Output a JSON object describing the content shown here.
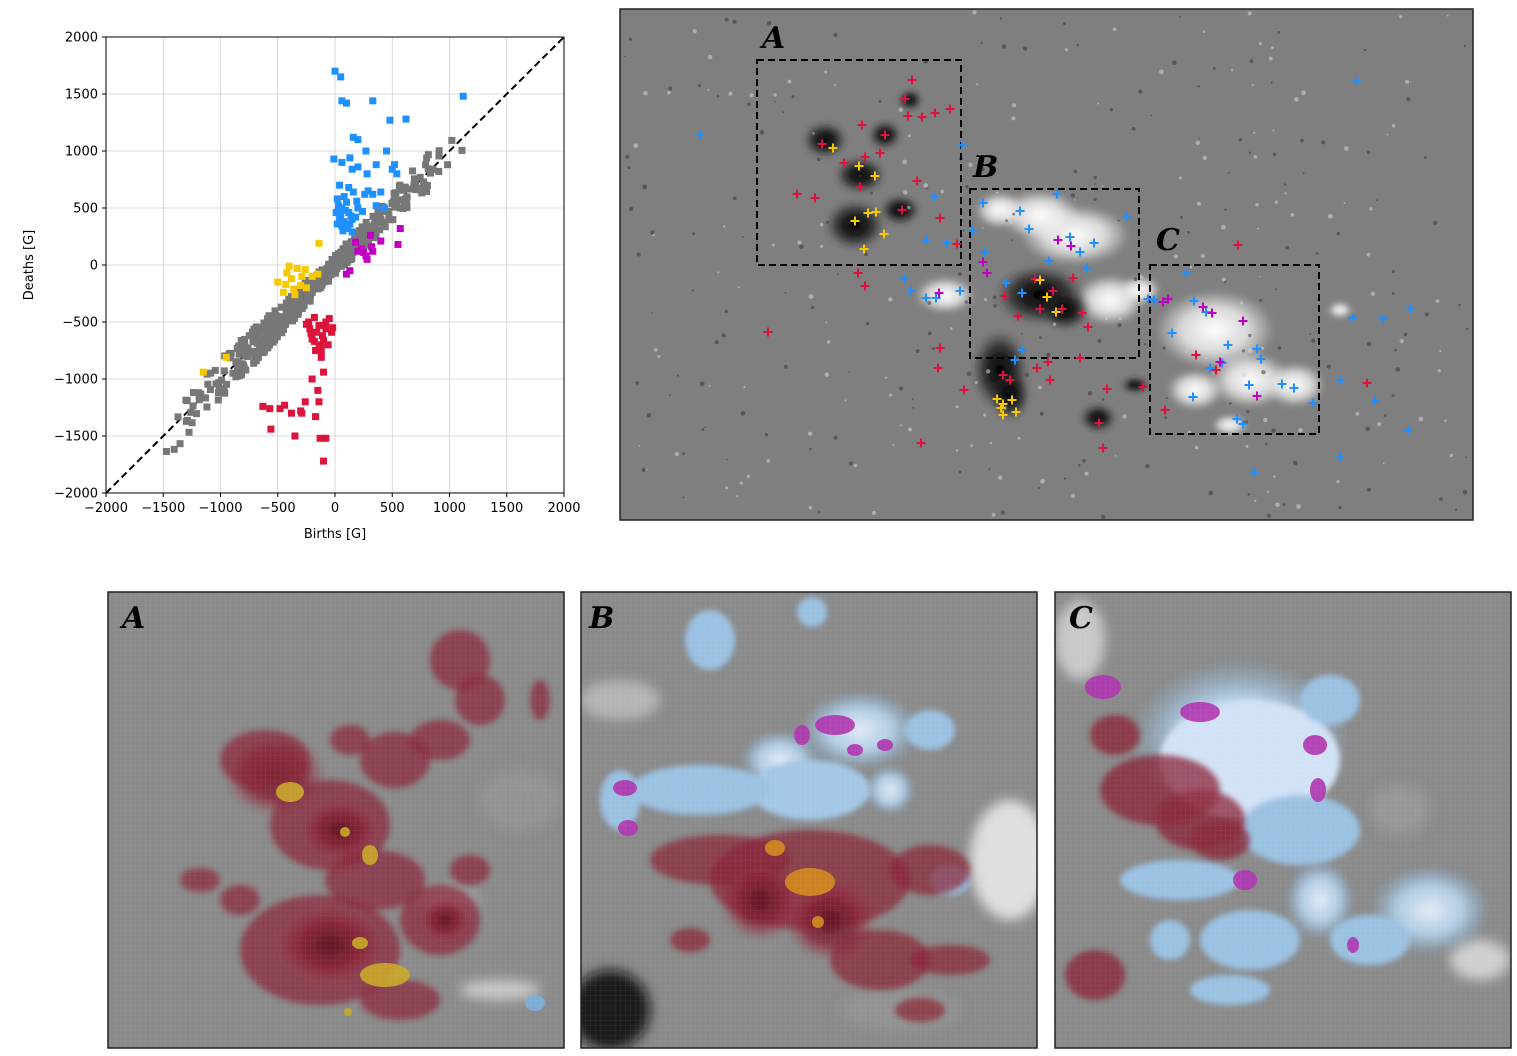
{
  "panel_labels": [
    "A",
    "B",
    "C"
  ],
  "colors": {
    "gray": "#777777",
    "blue": "#1e90ff",
    "red": "#dc143c",
    "magenta": "#c000c0",
    "yellow": "#f5c800"
  },
  "chart_data": {
    "type": "scatter",
    "xlabel": "Births [G]",
    "ylabel": "Deaths [G]",
    "xlim": [
      -2000,
      2000
    ],
    "ylim": [
      -2000,
      2000
    ],
    "xticks": [
      "−2000",
      "−1500",
      "−1000",
      "−500",
      "0",
      "500",
      "1000",
      "1500",
      "2000"
    ],
    "yticks": [
      "−2000",
      "−1500",
      "−1000",
      "−500",
      "0",
      "500",
      "1000",
      "1500",
      "2000"
    ],
    "grid": true,
    "reference_line": "y = x",
    "series": [
      {
        "color": "blue",
        "points": [
          [
            0,
            1700
          ],
          [
            50,
            1650
          ],
          [
            60,
            1440
          ],
          [
            100,
            1420
          ],
          [
            330,
            1440
          ],
          [
            480,
            1270
          ],
          [
            620,
            1280
          ],
          [
            1120,
            1480
          ],
          [
            160,
            1120
          ],
          [
            200,
            1100
          ],
          [
            130,
            940
          ],
          [
            270,
            1000
          ],
          [
            450,
            1000
          ],
          [
            360,
            880
          ],
          [
            -10,
            930
          ],
          [
            60,
            900
          ],
          [
            150,
            840
          ],
          [
            200,
            860
          ],
          [
            280,
            800
          ],
          [
            500,
            840
          ],
          [
            520,
            880
          ],
          [
            540,
            800
          ],
          [
            40,
            700
          ],
          [
            120,
            680
          ],
          [
            20,
            580
          ],
          [
            80,
            600
          ],
          [
            190,
            560
          ],
          [
            260,
            620
          ],
          [
            290,
            650
          ],
          [
            330,
            620
          ],
          [
            400,
            640
          ],
          [
            160,
            640
          ],
          [
            360,
            520
          ],
          [
            430,
            500
          ],
          [
            30,
            520
          ],
          [
            60,
            500
          ],
          [
            90,
            480
          ],
          [
            10,
            460
          ],
          [
            50,
            440
          ],
          [
            120,
            460
          ],
          [
            140,
            430
          ],
          [
            40,
            400
          ],
          [
            80,
            380
          ],
          [
            130,
            360
          ],
          [
            20,
            360
          ],
          [
            110,
            320
          ],
          [
            70,
            300
          ],
          [
            150,
            290
          ],
          [
            180,
            420
          ],
          [
            240,
            470
          ],
          [
            30,
            470
          ],
          [
            100,
            550
          ],
          [
            150,
            400
          ],
          [
            60,
            340
          ],
          [
            200,
            500
          ]
        ]
      },
      {
        "color": "red",
        "points": [
          [
            -100,
            -1720
          ],
          [
            -80,
            -1520
          ],
          [
            -130,
            -1520
          ],
          [
            -350,
            -1500
          ],
          [
            -480,
            -1260
          ],
          [
            -440,
            -1230
          ],
          [
            -380,
            -1300
          ],
          [
            -290,
            -1300
          ],
          [
            -560,
            -1440
          ],
          [
            -630,
            -1240
          ],
          [
            -170,
            -1330
          ],
          [
            -140,
            -1200
          ],
          [
            -150,
            -1100
          ],
          [
            -200,
            -1000
          ],
          [
            -100,
            -940
          ],
          [
            -260,
            -1200
          ],
          [
            -570,
            -1260
          ],
          [
            -300,
            -1280
          ],
          [
            -120,
            -810
          ],
          [
            -170,
            -750
          ],
          [
            -120,
            -700
          ],
          [
            -110,
            -620
          ],
          [
            -80,
            -560
          ],
          [
            -220,
            -560
          ],
          [
            -160,
            -590
          ],
          [
            -140,
            -530
          ],
          [
            -200,
            -650
          ],
          [
            -100,
            -660
          ],
          [
            -80,
            -500
          ],
          [
            -50,
            -470
          ],
          [
            -30,
            -590
          ],
          [
            -230,
            -500
          ],
          [
            -180,
            -460
          ],
          [
            -140,
            -720
          ],
          [
            -60,
            -700
          ],
          [
            -20,
            -550
          ],
          [
            -210,
            -600
          ],
          [
            -250,
            -520
          ],
          [
            -120,
            -760
          ],
          [
            -180,
            -670
          ]
        ]
      },
      {
        "color": "magenta",
        "points": [
          [
            570,
            320
          ],
          [
            550,
            180
          ],
          [
            400,
            210
          ],
          [
            310,
            260
          ],
          [
            320,
            160
          ],
          [
            250,
            110
          ],
          [
            270,
            80
          ],
          [
            180,
            200
          ],
          [
            200,
            120
          ],
          [
            330,
            120
          ],
          [
            130,
            -50
          ],
          [
            100,
            -80
          ],
          [
            230,
            140
          ],
          [
            280,
            50
          ]
        ]
      },
      {
        "color": "yellow",
        "points": [
          [
            -1150,
            -940
          ],
          [
            -950,
            -810
          ],
          [
            -140,
            190
          ],
          [
            -400,
            -10
          ],
          [
            -330,
            -30
          ],
          [
            -420,
            -70
          ],
          [
            -500,
            -150
          ],
          [
            -450,
            -240
          ],
          [
            -380,
            -120
          ],
          [
            -300,
            -180
          ],
          [
            -250,
            -200
          ],
          [
            -350,
            -260
          ],
          [
            -290,
            -100
          ],
          [
            -430,
            -170
          ],
          [
            -200,
            -100
          ],
          [
            -150,
            -80
          ],
          [
            -360,
            -210
          ],
          [
            -260,
            -40
          ]
        ]
      }
    ]
  }
}
